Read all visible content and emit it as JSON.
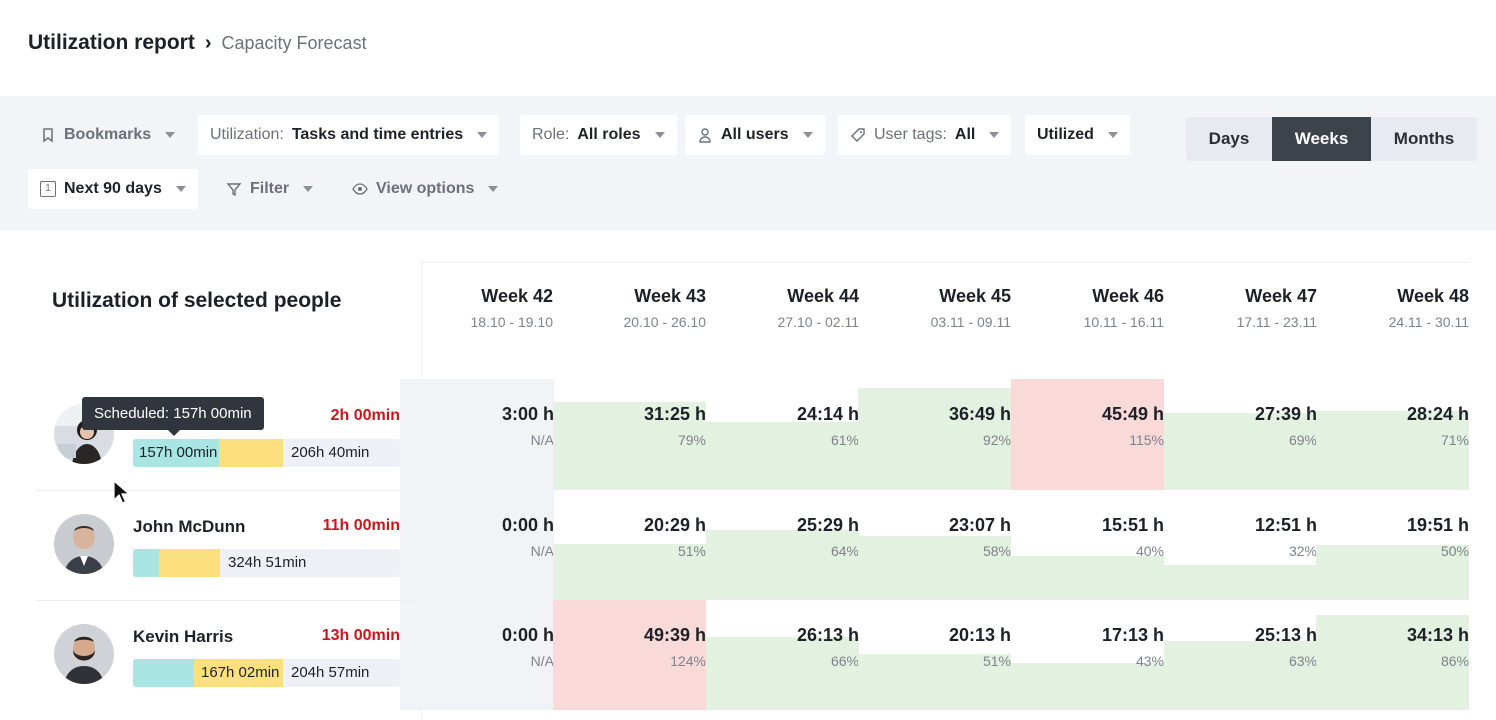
{
  "breadcrumb": {
    "title": "Utilization report",
    "separator": "›",
    "sub": "Capacity Forecast"
  },
  "toolbar": {
    "bookmarks": "Bookmarks",
    "utilization_label": "Utilization:",
    "utilization_value": "Tasks and time entries",
    "role_label": "Role:",
    "role_value": "All roles",
    "users": "All users",
    "tags_label": "User tags:",
    "tags_value": "All",
    "utilized": "Utilized",
    "period": "Next 90 days",
    "period_icon_text": "1",
    "filter": "Filter",
    "view_options": "View options"
  },
  "view_switch": {
    "options": [
      "Days",
      "Weeks",
      "Months"
    ],
    "active": "Weeks"
  },
  "table": {
    "title": "Utilization of selected people",
    "weeks": [
      {
        "name": "Week 42",
        "dates": "18.10 - 19.10"
      },
      {
        "name": "Week 43",
        "dates": "20.10 - 26.10"
      },
      {
        "name": "Week 44",
        "dates": "27.10 - 02.11"
      },
      {
        "name": "Week 45",
        "dates": "03.11 - 09.11"
      },
      {
        "name": "Week 46",
        "dates": "10.11 - 16.11"
      },
      {
        "name": "Week 47",
        "dates": "17.11 - 23.11"
      },
      {
        "name": "Week 48",
        "dates": "24.11 - 30.11"
      }
    ],
    "people": [
      {
        "name": "",
        "delta": "2h 00min",
        "bar": {
          "scheduled": "157h 00min",
          "remaining": "206h 40min"
        },
        "cells": [
          {
            "value": "3:00 h",
            "pct": "N/A",
            "fill": 0
          },
          {
            "value": "31:25 h",
            "pct": "79%",
            "fill": 0.79
          },
          {
            "value": "24:14 h",
            "pct": "61%",
            "fill": 0.61
          },
          {
            "value": "36:49 h",
            "pct": "92%",
            "fill": 0.92
          },
          {
            "value": "45:49 h",
            "pct": "115%",
            "fill": 1.15
          },
          {
            "value": "27:39 h",
            "pct": "69%",
            "fill": 0.69
          },
          {
            "value": "28:24 h",
            "pct": "71%",
            "fill": 0.71
          }
        ]
      },
      {
        "name": "John McDunn",
        "delta": "11h 00min",
        "bar": {
          "scheduled": "",
          "remaining": "324h 51min"
        },
        "cells": [
          {
            "value": "0:00 h",
            "pct": "N/A",
            "fill": 0
          },
          {
            "value": "20:29 h",
            "pct": "51%",
            "fill": 0.51
          },
          {
            "value": "25:29 h",
            "pct": "64%",
            "fill": 0.64
          },
          {
            "value": "23:07 h",
            "pct": "58%",
            "fill": 0.58
          },
          {
            "value": "15:51 h",
            "pct": "40%",
            "fill": 0.4
          },
          {
            "value": "12:51 h",
            "pct": "32%",
            "fill": 0.32
          },
          {
            "value": "19:51 h",
            "pct": "50%",
            "fill": 0.5
          }
        ]
      },
      {
        "name": "Kevin Harris",
        "delta": "13h 00min",
        "bar": {
          "scheduled": "167h 02min",
          "remaining": "204h 57min"
        },
        "cells": [
          {
            "value": "0:00 h",
            "pct": "N/A",
            "fill": 0
          },
          {
            "value": "49:39 h",
            "pct": "124%",
            "fill": 1.24
          },
          {
            "value": "26:13 h",
            "pct": "66%",
            "fill": 0.66
          },
          {
            "value": "20:13 h",
            "pct": "51%",
            "fill": 0.51
          },
          {
            "value": "17:13 h",
            "pct": "43%",
            "fill": 0.43
          },
          {
            "value": "25:13 h",
            "pct": "63%",
            "fill": 0.63
          },
          {
            "value": "34:13 h",
            "pct": "86%",
            "fill": 0.86
          }
        ]
      }
    ]
  },
  "tooltip": "Scheduled: 157h 00min",
  "colors": {
    "green": "#e3f1e1",
    "red": "#fad9d9",
    "na": "#f2f3f6",
    "teal": "#a9e5e2",
    "yellow": "#fbe07d",
    "delta": "#c8171c"
  }
}
